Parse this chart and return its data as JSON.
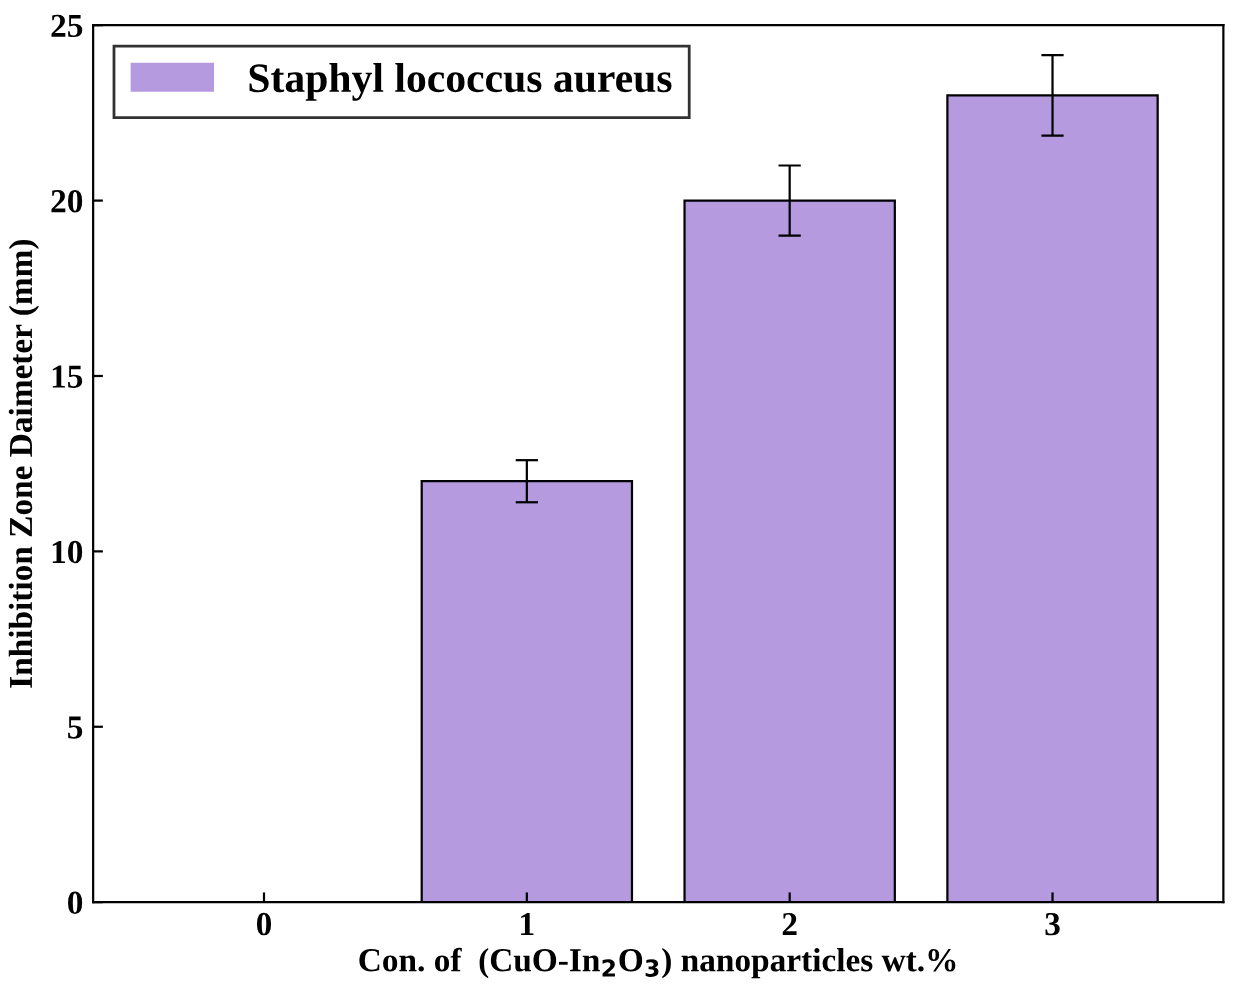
{
  "chart_data": {
    "type": "bar",
    "xlabel": "Con. of  (CuO-In$_{2}$O$_{3}$) nanoparticles wt.%",
    "ylabel": "Inhibition Zone Daimeter (mm)",
    "categories": [
      "0",
      "1",
      "2",
      "3"
    ],
    "series": [
      {
        "name": "Staphyl lococcus aureus",
        "color": "#b59ae0",
        "values": [
          0,
          12,
          20,
          23
        ],
        "errors": [
          null,
          0.6,
          1,
          1.15
        ]
      }
    ],
    "ylim": [
      0,
      25
    ],
    "yticks": [
      0,
      5,
      10,
      15,
      20,
      25
    ],
    "grid": false,
    "legend": "top left"
  }
}
